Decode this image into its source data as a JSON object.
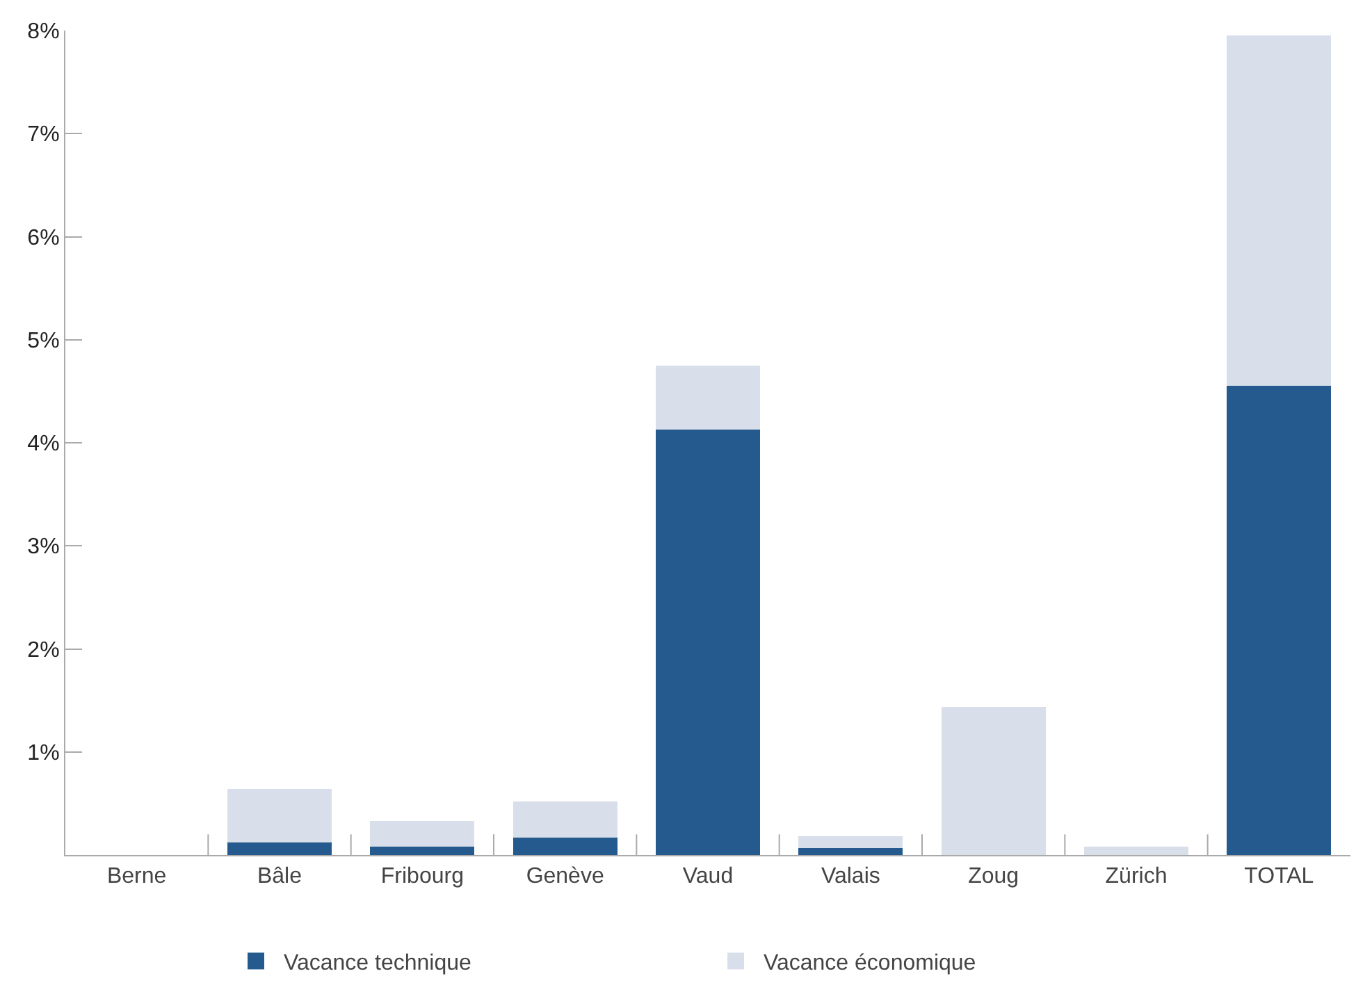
{
  "chart_data": {
    "type": "bar",
    "stacked": true,
    "categories": [
      "Berne",
      "Bâle",
      "Fribourg",
      "Genève",
      "Vaud",
      "Valais",
      "Zoug",
      "Zürich",
      "TOTAL"
    ],
    "series": [
      {
        "name": "Vacance technique",
        "color": "#245a8d",
        "values": [
          0,
          0.12,
          0.08,
          0.17,
          4.13,
          0.07,
          0,
          0,
          4.55
        ]
      },
      {
        "name": "Vacance économique",
        "color": "#d9dfea",
        "values": [
          0,
          0.52,
          0.25,
          0.35,
          0.62,
          0.11,
          1.44,
          0.08,
          3.4
        ]
      }
    ],
    "ylim": [
      0,
      8
    ],
    "yticks": [
      {
        "value": 1,
        "label": "1%"
      },
      {
        "value": 2,
        "label": "2%"
      },
      {
        "value": 3,
        "label": "3%"
      },
      {
        "value": 4,
        "label": "4%"
      },
      {
        "value": 5,
        "label": "5%"
      },
      {
        "value": 6,
        "label": "6%"
      },
      {
        "value": 7,
        "label": "7%"
      },
      {
        "value": 8,
        "label": "8%"
      }
    ],
    "legend": "bottom"
  }
}
